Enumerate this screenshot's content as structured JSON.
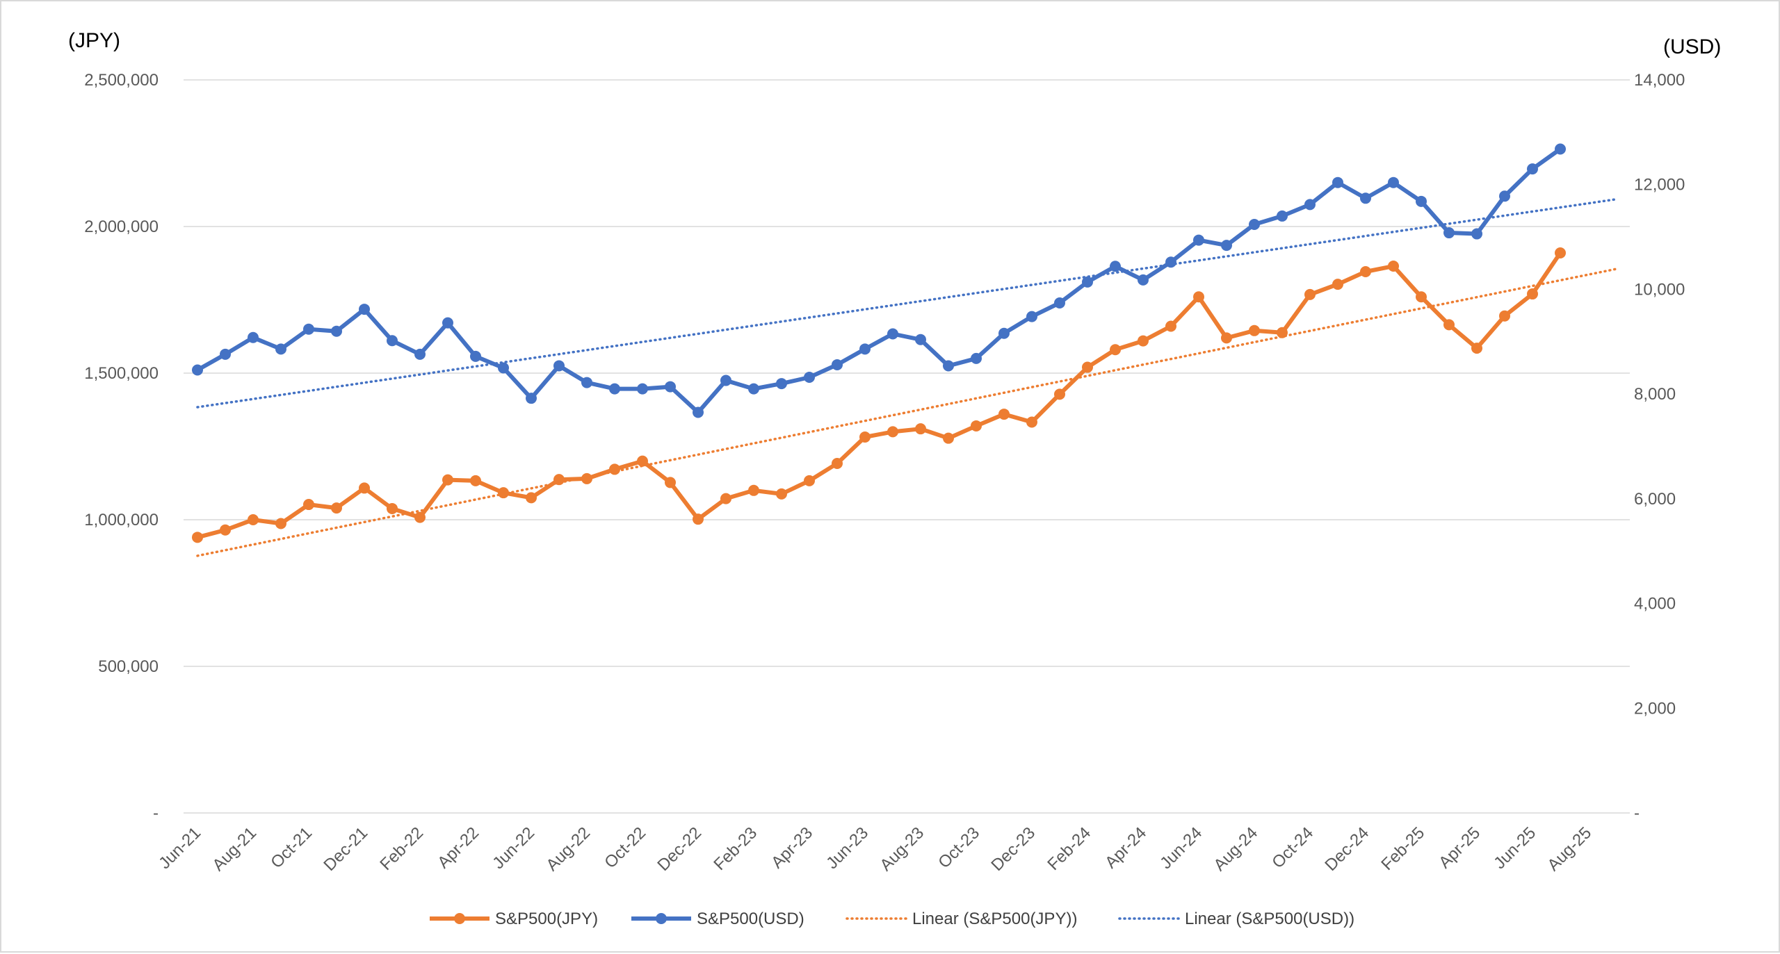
{
  "chart_data": {
    "type": "line",
    "y_left_unit": "(JPY)",
    "y_right_unit": "(USD)",
    "y_left_ticks": [
      "-",
      "500,000",
      "1,000,000",
      "1,500,000",
      "2,000,000",
      "2,500,000"
    ],
    "y_right_ticks": [
      "-",
      "2,000",
      "4,000",
      "6,000",
      "8,000",
      "10,000",
      "12,000",
      "14,000"
    ],
    "y_left_range": [
      0,
      2500000
    ],
    "y_right_range": [
      0,
      14000
    ],
    "x_tick_labels": [
      "Jun-21",
      "Aug-21",
      "Oct-21",
      "Dec-21",
      "Feb-22",
      "Apr-22",
      "Jun-22",
      "Aug-22",
      "Oct-22",
      "Dec-22",
      "Feb-23",
      "Apr-23",
      "Jun-23",
      "Aug-23",
      "Oct-23",
      "Dec-23",
      "Feb-24",
      "Apr-24",
      "Jun-24",
      "Aug-24",
      "Oct-24",
      "Dec-24",
      "Feb-25",
      "Apr-25",
      "Jun-25",
      "Aug-25"
    ],
    "x": [
      "Jun-21",
      "Jul-21",
      "Aug-21",
      "Sep-21",
      "Oct-21",
      "Nov-21",
      "Dec-21",
      "Jan-22",
      "Feb-22",
      "Mar-22",
      "Apr-22",
      "May-22",
      "Jun-22",
      "Jul-22",
      "Aug-22",
      "Sep-22",
      "Oct-22",
      "Nov-22",
      "Dec-22",
      "Jan-23",
      "Feb-23",
      "Mar-23",
      "Apr-23",
      "May-23",
      "Jun-23",
      "Jul-23",
      "Aug-23",
      "Sep-23",
      "Oct-23",
      "Nov-23",
      "Dec-23",
      "Jan-24",
      "Feb-24",
      "Mar-24",
      "Apr-24",
      "May-24",
      "Jun-24",
      "Jul-24",
      "Aug-24",
      "Sep-24",
      "Oct-24",
      "Nov-24",
      "Dec-24",
      "Jan-25",
      "Feb-25",
      "Mar-25",
      "Apr-25",
      "May-25",
      "Jun-25",
      "Jul-25"
    ],
    "grid": true,
    "legend_position": "bottom",
    "series": [
      {
        "name": "S&P500(JPY)",
        "axis": "left",
        "color": "#ED7D31",
        "style": "line-markers",
        "values": [
          940000,
          965000,
          1000000,
          987000,
          1052000,
          1040000,
          1108000,
          1038000,
          1008000,
          1136000,
          1133000,
          1092000,
          1075000,
          1137000,
          1140000,
          1172000,
          1200000,
          1127000,
          1002000,
          1072000,
          1100000,
          1088000,
          1133000,
          1192000,
          1282000,
          1300000,
          1310000,
          1278000,
          1320000,
          1360000,
          1333000,
          1428000,
          1520000,
          1580000,
          1610000,
          1660000,
          1760000,
          1620000,
          1645000,
          1638000,
          1768000,
          1803000,
          1846000,
          1865000,
          1760000,
          1665000,
          1585000,
          1695000,
          1770000,
          1910000
        ]
      },
      {
        "name": "S&P500(USD)",
        "axis": "right",
        "color": "#4472C4",
        "style": "line-markers",
        "values": [
          8460,
          8760,
          9080,
          8860,
          9240,
          9200,
          9620,
          9020,
          8760,
          9360,
          8720,
          8500,
          7920,
          8540,
          8220,
          8100,
          8100,
          8140,
          7650,
          8260,
          8100,
          8200,
          8320,
          8560,
          8860,
          9150,
          9040,
          8540,
          8680,
          9160,
          9480,
          9740,
          10140,
          10440,
          10180,
          10520,
          10940,
          10840,
          11240,
          11400,
          11620,
          12040,
          11740,
          12040,
          11680,
          11080,
          11060,
          11780,
          12300,
          12680
        ]
      },
      {
        "name": "Linear (S&P500(JPY))",
        "axis": "left",
        "color": "#ED7D31",
        "style": "dotted",
        "start": 877000,
        "end": 1855000
      },
      {
        "name": "Linear (S&P500(USD))",
        "axis": "right",
        "color": "#4472C4",
        "style": "dotted",
        "start": 7750,
        "end": 11720
      }
    ]
  }
}
